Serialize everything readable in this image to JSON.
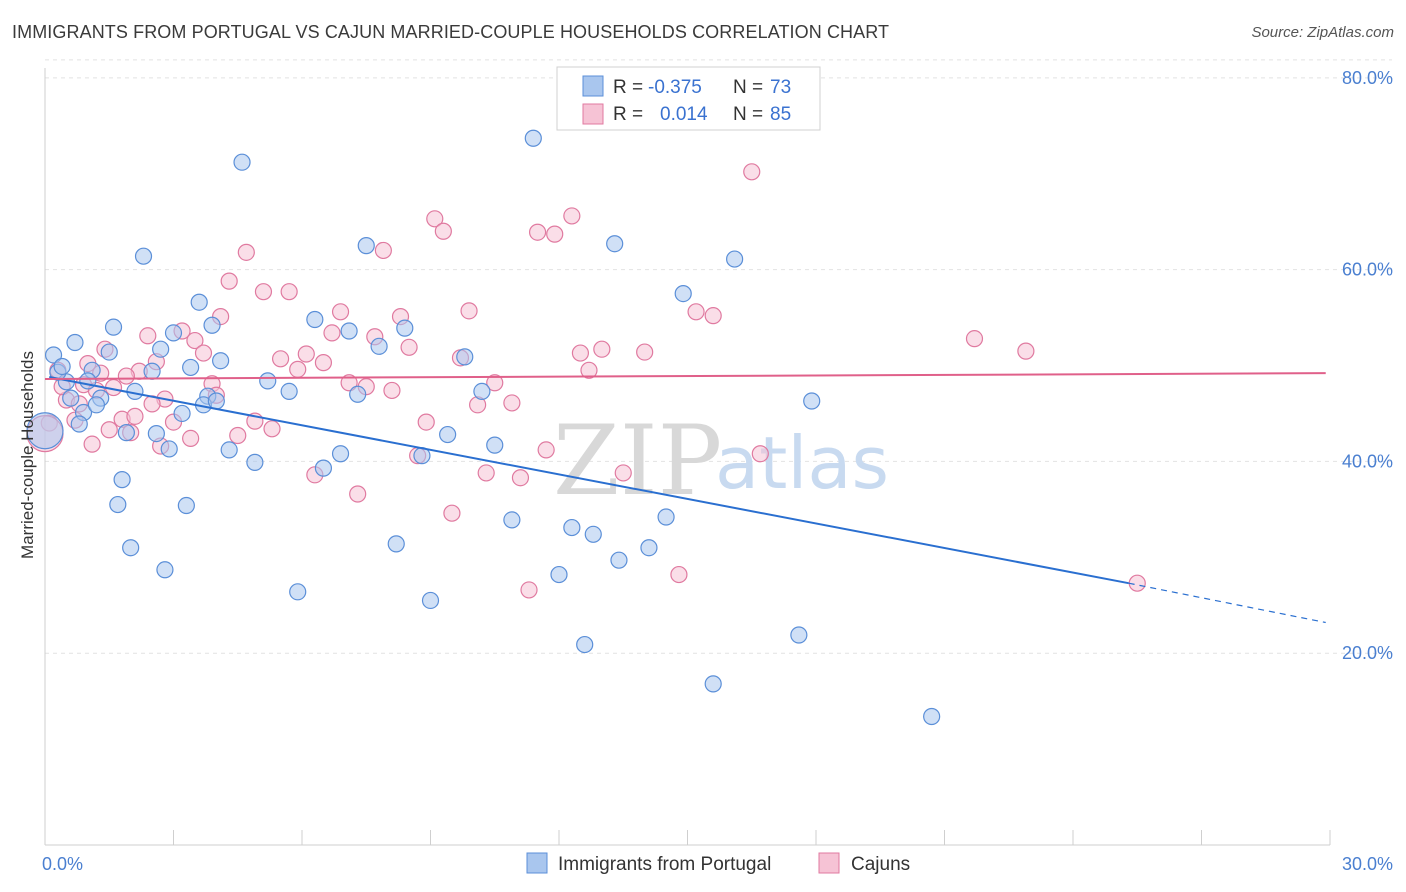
{
  "title": "IMMIGRANTS FROM PORTUGAL VS CAJUN MARRIED-COUPLE HOUSEHOLDS CORRELATION CHART",
  "source": "Source: ZipAtlas.com",
  "watermark": {
    "zip": "ZIP",
    "atlas": "atlas"
  },
  "colors": {
    "blue": "#5b8fd8",
    "blue_fill": "#a9c6ee",
    "pink": "#e07aa0",
    "pink_fill": "#f6c3d5",
    "blue_line": "#2a6fd0",
    "pink_line": "#e0608a",
    "tick": "#4a7fd0"
  },
  "legend": {
    "r_label": "R =",
    "n_label": "N =",
    "series": [
      {
        "r": "-0.375",
        "n": "73"
      },
      {
        "r": "0.014",
        "n": "85"
      }
    ]
  },
  "chart_data": {
    "type": "scatter",
    "ylabel": "Married-couple Households",
    "xlim": [
      0,
      30
    ],
    "ylim": [
      0,
      85
    ],
    "x_tick_labels": [
      "0.0%",
      "30.0%"
    ],
    "y_ticks": [
      20,
      40,
      60,
      80
    ],
    "y_tick_labels": [
      "20.0%",
      "40.0%",
      "60.0%",
      "80.0%"
    ],
    "grid": true,
    "legend_position": "top-center",
    "series": [
      {
        "name": "Immigrants from Portugal",
        "color": "#5b8fd8",
        "trend": {
          "x0": 0.1,
          "y0": 48.8,
          "x1": 25.3,
          "y1": 27.3,
          "dash_to_x": 29.9,
          "dash_to_y": 23.2
        },
        "points": [
          [
            0.2,
            51.1
          ],
          [
            0.5,
            48.3
          ],
          [
            0.7,
            52.4
          ],
          [
            0.9,
            45.1
          ],
          [
            1.1,
            49.5
          ],
          [
            1.3,
            46.6
          ],
          [
            1.6,
            54.0
          ],
          [
            1.9,
            43.0
          ],
          [
            2.1,
            47.3
          ],
          [
            2.3,
            61.4
          ],
          [
            2.5,
            49.4
          ],
          [
            2.7,
            51.7
          ],
          [
            3.0,
            53.4
          ],
          [
            3.2,
            45.0
          ],
          [
            3.4,
            49.8
          ],
          [
            3.6,
            56.6
          ],
          [
            3.8,
            46.8
          ],
          [
            3.9,
            54.2
          ],
          [
            4.1,
            50.5
          ],
          [
            4.3,
            41.2
          ],
          [
            4.6,
            71.2
          ],
          [
            4.9,
            39.9
          ],
          [
            5.2,
            48.4
          ],
          [
            5.7,
            47.3
          ],
          [
            5.9,
            26.4
          ],
          [
            6.3,
            54.8
          ],
          [
            6.5,
            39.3
          ],
          [
            6.9,
            40.8
          ],
          [
            7.1,
            53.6
          ],
          [
            7.3,
            47.0
          ],
          [
            7.5,
            62.5
          ],
          [
            7.8,
            52.0
          ],
          [
            8.2,
            31.4
          ],
          [
            8.4,
            53.9
          ],
          [
            8.8,
            40.6
          ],
          [
            9.0,
            25.5
          ],
          [
            9.4,
            42.8
          ],
          [
            9.8,
            50.9
          ],
          [
            10.2,
            47.3
          ],
          [
            10.5,
            41.7
          ],
          [
            10.9,
            33.9
          ],
          [
            11.4,
            73.7
          ],
          [
            12.0,
            28.2
          ],
          [
            12.3,
            33.1
          ],
          [
            12.6,
            20.9
          ],
          [
            12.8,
            32.4
          ],
          [
            13.3,
            62.7
          ],
          [
            13.4,
            29.7
          ],
          [
            14.1,
            31.0
          ],
          [
            14.5,
            34.2
          ],
          [
            14.9,
            57.5
          ],
          [
            15.6,
            16.8
          ],
          [
            16.1,
            61.1
          ],
          [
            17.6,
            21.9
          ],
          [
            17.9,
            46.3
          ],
          [
            20.7,
            13.4
          ],
          [
            1.0,
            48.4
          ],
          [
            1.5,
            51.4
          ],
          [
            0.3,
            49.3
          ],
          [
            1.8,
            38.1
          ],
          [
            2.0,
            31.0
          ],
          [
            0.8,
            43.9
          ],
          [
            2.9,
            41.3
          ],
          [
            3.3,
            35.4
          ],
          [
            1.7,
            35.5
          ],
          [
            2.6,
            42.9
          ],
          [
            3.7,
            45.9
          ],
          [
            1.2,
            45.9
          ],
          [
            0.6,
            46.6
          ],
          [
            4.0,
            46.3
          ],
          [
            0.0,
            43.2
          ],
          [
            2.8,
            28.7
          ],
          [
            0.4,
            49.9
          ]
        ]
      },
      {
        "name": "Cajuns",
        "color": "#e07aa0",
        "trend": {
          "x0": 0.0,
          "y0": 48.6,
          "x1": 29.9,
          "y1": 49.2
        },
        "points": [
          [
            0.1,
            44.0
          ],
          [
            0.3,
            49.5
          ],
          [
            0.5,
            46.4
          ],
          [
            0.7,
            44.3
          ],
          [
            0.9,
            48.0
          ],
          [
            1.0,
            50.2
          ],
          [
            1.2,
            47.4
          ],
          [
            1.4,
            51.7
          ],
          [
            1.6,
            47.7
          ],
          [
            1.8,
            44.4
          ],
          [
            2.0,
            43.0
          ],
          [
            2.2,
            49.4
          ],
          [
            2.4,
            53.1
          ],
          [
            2.6,
            50.4
          ],
          [
            2.8,
            46.5
          ],
          [
            3.0,
            44.1
          ],
          [
            3.2,
            53.6
          ],
          [
            3.4,
            42.4
          ],
          [
            3.5,
            52.6
          ],
          [
            3.7,
            51.3
          ],
          [
            3.9,
            48.1
          ],
          [
            4.0,
            46.9
          ],
          [
            4.1,
            55.1
          ],
          [
            4.3,
            58.8
          ],
          [
            4.5,
            42.7
          ],
          [
            4.7,
            61.8
          ],
          [
            4.9,
            44.2
          ],
          [
            5.1,
            57.7
          ],
          [
            5.3,
            43.4
          ],
          [
            5.5,
            50.7
          ],
          [
            5.7,
            57.7
          ],
          [
            5.9,
            49.6
          ],
          [
            6.1,
            51.2
          ],
          [
            6.3,
            38.6
          ],
          [
            6.5,
            50.3
          ],
          [
            6.7,
            53.4
          ],
          [
            6.9,
            55.6
          ],
          [
            7.1,
            48.2
          ],
          [
            7.3,
            36.6
          ],
          [
            7.5,
            47.8
          ],
          [
            7.7,
            53.0
          ],
          [
            7.9,
            62.0
          ],
          [
            8.1,
            47.4
          ],
          [
            8.3,
            55.1
          ],
          [
            8.5,
            51.9
          ],
          [
            8.7,
            40.6
          ],
          [
            8.9,
            44.1
          ],
          [
            9.1,
            65.3
          ],
          [
            9.3,
            64.0
          ],
          [
            9.5,
            34.6
          ],
          [
            9.7,
            50.8
          ],
          [
            9.9,
            55.7
          ],
          [
            10.1,
            45.9
          ],
          [
            10.3,
            38.8
          ],
          [
            10.5,
            48.2
          ],
          [
            10.9,
            46.1
          ],
          [
            11.1,
            38.3
          ],
          [
            11.3,
            26.6
          ],
          [
            11.5,
            63.9
          ],
          [
            11.7,
            41.2
          ],
          [
            11.9,
            63.7
          ],
          [
            12.3,
            65.6
          ],
          [
            12.5,
            51.3
          ],
          [
            12.7,
            49.5
          ],
          [
            13.0,
            51.7
          ],
          [
            13.5,
            38.8
          ],
          [
            14.0,
            51.4
          ],
          [
            14.8,
            28.2
          ],
          [
            15.2,
            55.6
          ],
          [
            15.6,
            55.2
          ],
          [
            16.5,
            70.2
          ],
          [
            16.7,
            40.8
          ],
          [
            21.7,
            52.8
          ],
          [
            22.9,
            51.5
          ],
          [
            25.5,
            27.3
          ],
          [
            0.0,
            42.9
          ],
          [
            0.4,
            47.8
          ],
          [
            0.8,
            46.0
          ],
          [
            1.1,
            41.8
          ],
          [
            1.3,
            49.2
          ],
          [
            1.5,
            43.3
          ],
          [
            1.9,
            48.9
          ],
          [
            2.1,
            44.7
          ],
          [
            2.5,
            46.0
          ],
          [
            2.7,
            41.6
          ]
        ]
      }
    ]
  }
}
